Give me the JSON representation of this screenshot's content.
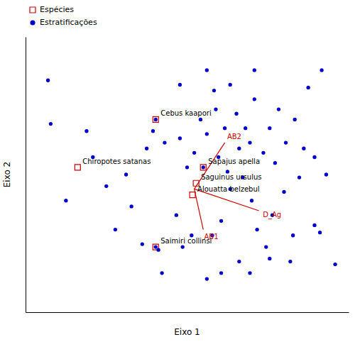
{
  "chart_data": {
    "type": "scatter",
    "xlabel": "Eixo 1",
    "ylabel": "Eixo 2",
    "xlim": [
      -2.0,
      1.6
    ],
    "ylim": [
      -0.95,
      0.95
    ],
    "tick_labels": false,
    "legend": "upper left",
    "series": [
      {
        "name": "Espécies",
        "color": "#cc0000",
        "marker": "square",
        "point_labels": [
          "Cebus kaapori",
          "Chiropotes satanas",
          "Sapajus apella",
          "Saguinus ursulus",
          "Alouatta belzebul",
          "Saimiri collinsi"
        ],
        "x": [
          -0.55,
          -1.42,
          -0.02,
          -0.1,
          -0.14,
          -0.55
        ],
        "y": [
          0.38,
          0.05,
          0.05,
          -0.06,
          -0.14,
          -0.5
        ]
      },
      {
        "name": "Estratificações",
        "color": "#0000cc",
        "marker": "circle",
        "x": [
          -1.75,
          -1.72,
          -1.55,
          -1.32,
          -1.25,
          -1.1,
          -1.0,
          -0.88,
          -0.82,
          -0.7,
          -0.65,
          -0.58,
          -0.52,
          -0.45,
          -0.28,
          -0.25,
          -0.2,
          -0.15,
          -0.05,
          0.02,
          0.08,
          0.1,
          0.12,
          0.15,
          0.18,
          0.22,
          0.25,
          0.28,
          0.35,
          0.38,
          0.42,
          0.45,
          0.5,
          0.52,
          0.55,
          0.58,
          0.65,
          0.68,
          0.72,
          0.75,
          0.78,
          0.82,
          0.88,
          0.9,
          0.95,
          1.0,
          1.05,
          1.1,
          1.15,
          1.22,
          1.28,
          1.35,
          0.02,
          0.28,
          -0.28,
          0.55,
          -0.48,
          0.18,
          0.72,
          1.22,
          0.02,
          0.5,
          0.98,
          -0.12,
          -0.32,
          0.38,
          1.3,
          1.45,
          -0.55,
          -0.02,
          -0.55
        ],
        "y": [
          0.65,
          0.35,
          -0.18,
          0.3,
          0.12,
          -0.08,
          -0.38,
          0.0,
          -0.22,
          -0.48,
          0.18,
          0.3,
          -0.52,
          0.22,
          0.25,
          -0.5,
          0.05,
          -0.42,
          0.38,
          0.28,
          -0.42,
          0.58,
          0.45,
          0.12,
          -0.32,
          0.32,
          0.02,
          -0.1,
          0.42,
          0.18,
          -0.02,
          0.32,
          0.22,
          -0.18,
          0.52,
          -0.38,
          0.15,
          -0.5,
          0.32,
          -0.28,
          0.08,
          0.45,
          -0.12,
          0.22,
          -0.6,
          0.38,
          -0.02,
          0.18,
          0.6,
          0.12,
          -0.4,
          0.0,
          0.72,
          0.62,
          0.62,
          0.72,
          -0.68,
          -0.68,
          -0.58,
          -0.35,
          -0.72,
          -0.68,
          -0.42,
          0.15,
          -0.28,
          -0.6,
          0.72,
          -0.62,
          0.38,
          0.05,
          -0.5
        ]
      }
    ],
    "vectors": {
      "color": "#cc0000",
      "origin_x": -0.12,
      "origin_y": -0.1,
      "labels": [
        "AB2",
        "AB1",
        "D_Ag"
      ],
      "x": [
        0.22,
        -0.02,
        0.6
      ],
      "y": [
        0.22,
        -0.38,
        -0.25
      ]
    }
  }
}
